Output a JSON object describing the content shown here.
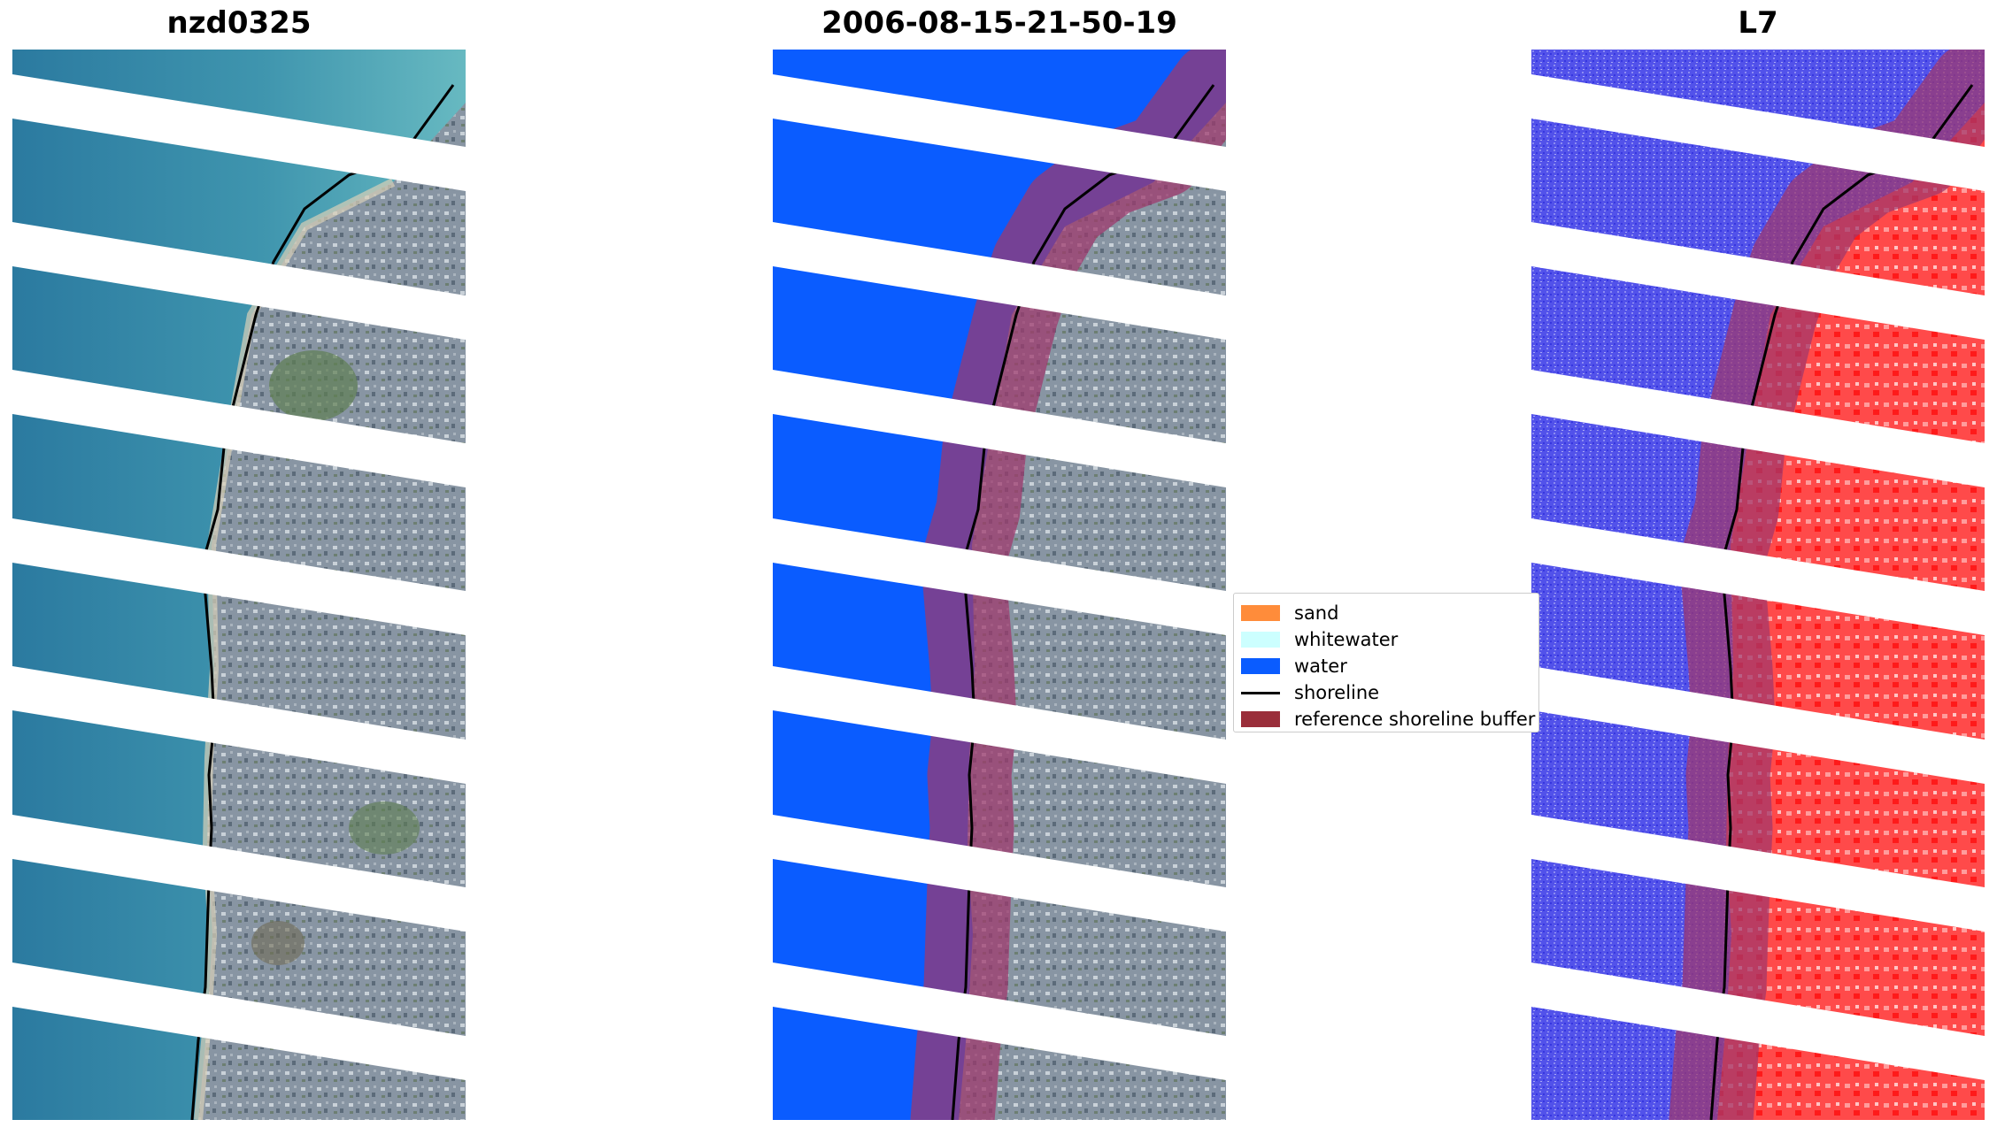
{
  "panels": [
    {
      "title": "nzd0325",
      "kind": "rgb"
    },
    {
      "title": "2006-08-15-21-50-19",
      "kind": "classified"
    },
    {
      "title": "L7",
      "kind": "index"
    }
  ],
  "legend": {
    "items": [
      {
        "label": "sand",
        "color": "#ff8c3a",
        "type": "patch"
      },
      {
        "label": "whitewater",
        "color": "#ccffff",
        "type": "patch"
      },
      {
        "label": "water",
        "color": "#0a5cff",
        "type": "patch"
      },
      {
        "label": "shoreline",
        "color": "#000000",
        "type": "line"
      },
      {
        "label": "reference shoreline buffer",
        "color": "#9a2e3a",
        "type": "patch"
      }
    ]
  },
  "colors": {
    "sea": "#2d7ea0",
    "shallow": "#4aa7b8",
    "land": "#8794a3",
    "vegetation": "#5f7f52",
    "water_class": "#0a5cff",
    "buffer": "#a0386c",
    "index_water": "#4a4ae8",
    "index_land": "#ff2a2a",
    "shoreline": "#000000"
  }
}
